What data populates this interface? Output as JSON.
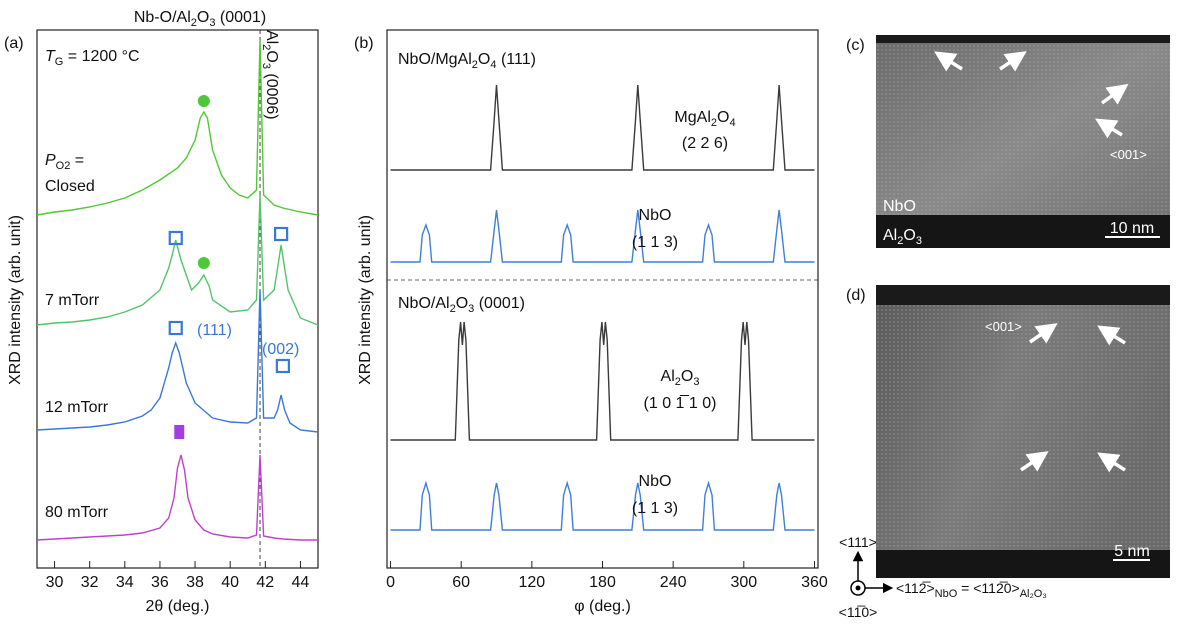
{
  "chart_data": [
    {
      "type": "line",
      "panel_label": "(a)",
      "title": [
        "Nb-O/Al",
        "2",
        "O",
        "3",
        " (0001)"
      ],
      "xlabel": "2θ (deg.)",
      "ylabel": "XRD intensity (arb. unit)",
      "growth_temperature": [
        "T",
        "G",
        " = 1200 °C"
      ],
      "pressure_label": [
        "P",
        "O2",
        " ="
      ],
      "xlim": [
        29,
        45
      ],
      "xticks": [
        30,
        32,
        34,
        36,
        38,
        40,
        42,
        44
      ],
      "ylim": [
        0,
        538
      ],
      "reference_x": 41.7,
      "reference_label": [
        "Al",
        "2",
        "O",
        "3",
        " (0006)"
      ],
      "peak_labels": [
        "(111)",
        "(002)"
      ],
      "markers": [
        {
          "shape": "circle",
          "x": 38.5,
          "y": 467,
          "color": "#4cc838"
        },
        {
          "shape": "circle",
          "x": 38.5,
          "y": 305,
          "color": "#4cc838"
        },
        {
          "shape": "square",
          "x": 36.9,
          "y": 330,
          "color": "#3a78d8"
        },
        {
          "shape": "square",
          "x": 42.9,
          "y": 334,
          "color": "#3a78d8"
        },
        {
          "shape": "square",
          "x": 36.9,
          "y": 240,
          "color": "#3a78d8"
        },
        {
          "shape": "square",
          "x": 43.0,
          "y": 202,
          "color": "#3a78d8"
        },
        {
          "shape": "bar",
          "x": 37.1,
          "y": 136,
          "color": "#a040e0"
        }
      ],
      "series": [
        {
          "name": "Closed",
          "color": "#50c832",
          "x": [
            29,
            30,
            31,
            32,
            33,
            34,
            35,
            36,
            37,
            37.5,
            38,
            38.3,
            38.5,
            38.7,
            39,
            39.5,
            40,
            40.5,
            41,
            41.5,
            41.7,
            41.9,
            42.5,
            43,
            44,
            45
          ],
          "values": [
            353,
            356,
            358,
            361,
            365,
            370,
            378,
            388,
            400,
            410,
            428,
            450,
            456,
            450,
            418,
            393,
            380,
            373,
            370,
            378,
            528,
            373,
            363,
            360,
            356,
            353
          ]
        },
        {
          "name": "7 mTorr",
          "color": "#52c46a",
          "x": [
            29,
            30,
            31,
            32,
            33,
            34,
            35,
            36,
            36.5,
            36.7,
            36.9,
            37.2,
            37.8,
            38.2,
            38.5,
            38.8,
            39,
            40,
            41,
            41.5,
            41.7,
            41.9,
            42.5,
            42.7,
            42.9,
            43.1,
            43.3,
            44,
            45
          ],
          "values": [
            243,
            245,
            246,
            248,
            251,
            256,
            263,
            278,
            300,
            313,
            328,
            308,
            278,
            285,
            293,
            282,
            268,
            256,
            258,
            268,
            373,
            268,
            278,
            300,
            323,
            300,
            278,
            250,
            243
          ]
        },
        {
          "name": "12 mTorr",
          "color": "#3a78d8",
          "x": [
            29,
            30,
            31,
            32,
            33,
            34,
            35,
            35.5,
            36,
            36.5,
            36.7,
            36.9,
            37.1,
            37.5,
            38,
            39,
            40,
            41,
            41.5,
            41.7,
            41.9,
            42.5,
            42.7,
            42.9,
            43.1,
            43.4,
            44,
            45
          ],
          "values": [
            138,
            139,
            140,
            141,
            143,
            146,
            152,
            158,
            170,
            200,
            215,
            225,
            215,
            185,
            165,
            150,
            146,
            145,
            150,
            278,
            150,
            150,
            158,
            173,
            158,
            145,
            138,
            136
          ]
        },
        {
          "name": "80 mTorr",
          "color": "#c040d0",
          "x": [
            29,
            30,
            31,
            32,
            33,
            34,
            35,
            36,
            36.5,
            36.8,
            37,
            37.2,
            37.4,
            37.6,
            38,
            38.5,
            39,
            40,
            41,
            41.5,
            41.7,
            41.9,
            42.5,
            43,
            44,
            45
          ],
          "values": [
            28,
            29,
            30,
            31,
            32,
            33,
            35,
            40,
            50,
            70,
            100,
            113,
            98,
            70,
            48,
            38,
            34,
            31,
            30,
            33,
            113,
            32,
            30,
            29,
            28,
            28
          ]
        }
      ]
    },
    {
      "type": "line",
      "panel_label": "(b)",
      "xlabel": "φ (deg.)",
      "ylabel": "XRD intensity (arb. unit)",
      "xlim": [
        -3,
        363
      ],
      "xticks": [
        0,
        60,
        120,
        180,
        240,
        300,
        360
      ],
      "ylim": [
        0,
        538
      ],
      "section_titles": [
        [
          "NbO/MgAl",
          "2",
          "O",
          "4",
          " (111)"
        ],
        [
          "NbO/Al",
          "2",
          "O",
          "3",
          " (0001)"
        ]
      ],
      "series": [
        {
          "name": [
            "MgAl",
            "2",
            "O",
            "4"
          ],
          "reflection": "(2 2 6)",
          "color": "#3a3a3a",
          "x": [
            0,
            85,
            88,
            90,
            92,
            95,
            205,
            208,
            210,
            212,
            215,
            325,
            328,
            330,
            332,
            335,
            360
          ],
          "values": [
            398,
            398,
            448,
            483,
            448,
            398,
            398,
            448,
            483,
            448,
            398,
            398,
            448,
            483,
            448,
            398,
            398
          ]
        },
        {
          "name": "NbO",
          "reflection": "(1 1 3)",
          "color": "#3f7fd9",
          "x": [
            0,
            25,
            27,
            30,
            33,
            35,
            85,
            88,
            90,
            92,
            95,
            145,
            147,
            150,
            153,
            155,
            205,
            208,
            210,
            212,
            215,
            265,
            267,
            270,
            273,
            275,
            325,
            328,
            330,
            332,
            335,
            360
          ],
          "values": [
            306,
            306,
            333,
            343,
            333,
            306,
            306,
            338,
            358,
            338,
            306,
            306,
            333,
            343,
            333,
            306,
            306,
            338,
            358,
            338,
            306,
            306,
            333,
            343,
            333,
            306,
            306,
            338,
            358,
            338,
            306,
            306
          ]
        },
        {
          "name": [
            "Al",
            "2",
            "O",
            "3"
          ],
          "reflection": "(1 0 1̅ 1 0)",
          "color": "#3a3a3a",
          "x": [
            0,
            55,
            58,
            59.5,
            61,
            62.5,
            64,
            67,
            175,
            178,
            179.5,
            181,
            182.5,
            184,
            187,
            295,
            298,
            299.5,
            301,
            302.5,
            304,
            307,
            360
          ],
          "values": [
            128,
            128,
            228,
            246,
            223,
            246,
            228,
            128,
            128,
            228,
            246,
            223,
            246,
            228,
            128,
            128,
            228,
            246,
            223,
            246,
            228,
            128,
            128
          ]
        },
        {
          "name": "NbO",
          "reflection": "(1 1 3)",
          "color": "#3f7fd9",
          "x": [
            0,
            25,
            27,
            30,
            33,
            35,
            85,
            88,
            90,
            92,
            95,
            145,
            147,
            150,
            153,
            155,
            205,
            208,
            210,
            212,
            215,
            265,
            267,
            270,
            273,
            275,
            325,
            328,
            330,
            332,
            335,
            360
          ],
          "values": [
            38,
            38,
            73,
            85,
            73,
            38,
            38,
            73,
            85,
            73,
            38,
            38,
            73,
            85,
            73,
            38,
            38,
            73,
            85,
            73,
            38,
            38,
            73,
            85,
            73,
            38,
            38,
            73,
            85,
            73,
            38,
            38
          ]
        }
      ]
    }
  ],
  "images": [
    {
      "panel_label": "(c)",
      "layer_top": "NbO",
      "layer_bottom": [
        "Al",
        "2",
        "O",
        "3"
      ],
      "direction": "<001>",
      "scale_bar": "10 nm"
    },
    {
      "panel_label": "(d)",
      "direction": "<001>",
      "scale_bar": "5 nm"
    }
  ],
  "orientation": {
    "vertical": "<111>",
    "out_of_plane": "<11̅0>",
    "horizontal": [
      "<112̅>",
      "NbO",
      " = <112̅0>",
      "Al₂O₃"
    ]
  }
}
